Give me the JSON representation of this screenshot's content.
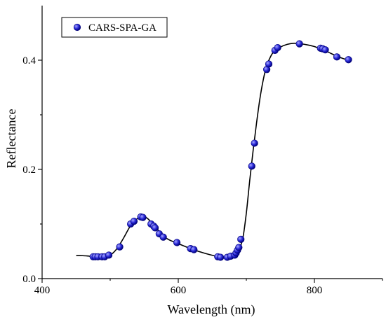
{
  "chart_data": {
    "type": "scatter",
    "xlabel": "Wavelength (nm)",
    "ylabel": "Reflectance",
    "xlim": [
      400,
      900
    ],
    "ylim": [
      0.0,
      0.5
    ],
    "x_ticks": [
      "400",
      "600",
      "800"
    ],
    "y_ticks": [
      "0.0",
      "0.2",
      "0.4"
    ],
    "x_tick_values": [
      400,
      600,
      800
    ],
    "y_tick_values": [
      0.0,
      0.2,
      0.4
    ],
    "grid": false,
    "legend_position": "top-left",
    "colors": {
      "points": "#2a2ad8",
      "point_edge": "#00007a",
      "curve": "#000000"
    },
    "series": [
      {
        "name": "CARS-SPA-GA",
        "x": [
          475,
          478,
          482,
          488,
          492,
          498,
          514,
          530,
          535,
          545,
          548,
          560,
          564,
          566,
          572,
          578,
          598,
          618,
          623,
          658,
          662,
          672,
          677,
          683,
          685,
          687,
          689,
          692,
          708,
          712,
          730,
          733,
          742,
          746,
          778,
          809,
          812,
          816,
          833,
          850
        ],
        "y": [
          0.04,
          0.04,
          0.04,
          0.04,
          0.04,
          0.043,
          0.058,
          0.1,
          0.105,
          0.113,
          0.112,
          0.1,
          0.096,
          0.093,
          0.082,
          0.076,
          0.066,
          0.055,
          0.053,
          0.04,
          0.039,
          0.039,
          0.041,
          0.043,
          0.047,
          0.052,
          0.057,
          0.072,
          0.206,
          0.248,
          0.383,
          0.393,
          0.418,
          0.423,
          0.43,
          0.422,
          0.421,
          0.419,
          0.406,
          0.401
        ]
      }
    ],
    "curve": {
      "x": [
        450,
        460,
        470,
        480,
        490,
        500,
        510,
        520,
        530,
        540,
        548,
        555,
        565,
        575,
        585,
        600,
        620,
        640,
        660,
        675,
        685,
        690,
        695,
        700,
        705,
        710,
        715,
        720,
        725,
        730,
        735,
        740,
        750,
        760,
        770,
        780,
        790,
        800,
        810,
        820,
        830,
        840,
        850
      ],
      "y": [
        0.042,
        0.042,
        0.041,
        0.04,
        0.04,
        0.043,
        0.055,
        0.075,
        0.097,
        0.11,
        0.114,
        0.11,
        0.097,
        0.082,
        0.072,
        0.064,
        0.054,
        0.046,
        0.04,
        0.039,
        0.046,
        0.055,
        0.075,
        0.12,
        0.18,
        0.235,
        0.285,
        0.33,
        0.365,
        0.39,
        0.405,
        0.415,
        0.424,
        0.429,
        0.431,
        0.43,
        0.428,
        0.425,
        0.42,
        0.415,
        0.409,
        0.404,
        0.4
      ]
    }
  }
}
